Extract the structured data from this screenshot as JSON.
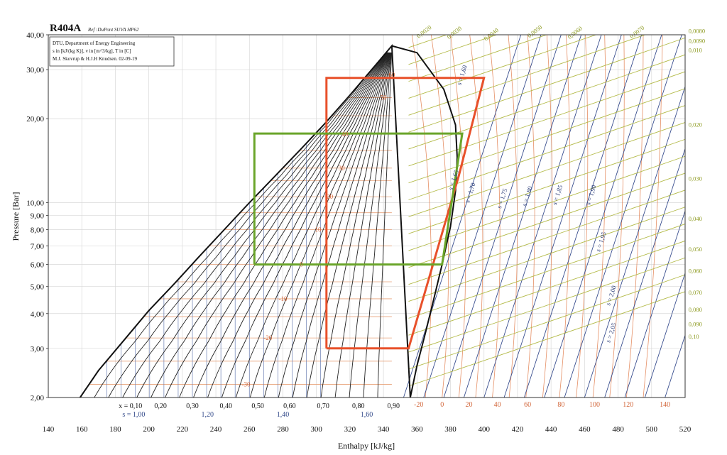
{
  "chart_data": {
    "type": "line",
    "title": "R404A",
    "subtitle": "Ref :DuPont SUVA HP62",
    "info_box": [
      "DTU, Department of Energy Engineering",
      "s in [kJ/(kg K)], v in [m^3/kg], T in [C]",
      "M.J. Skovrup & H.J.H Knudsen. 02-09-19"
    ],
    "xlabel": "Enthalpy [kJ/kg]",
    "ylabel": "Pressure [Bar]",
    "x_scale": "linear",
    "y_scale": "log",
    "xlim": [
      140,
      520
    ],
    "ylim": [
      2,
      40
    ],
    "grid": true,
    "x_ticks": [
      140,
      160,
      180,
      200,
      220,
      240,
      260,
      280,
      300,
      320,
      340,
      360,
      380,
      400,
      420,
      440,
      460,
      480,
      500,
      520
    ],
    "x_tick_labels": [
      "140",
      "160",
      "180",
      "200",
      "220",
      "240",
      "260",
      "280",
      "300",
      "320",
      "340",
      "360",
      "380",
      "400",
      "420",
      "440",
      "460",
      "480",
      "500",
      "520"
    ],
    "y_ticks": [
      2,
      3,
      4,
      5,
      6,
      7,
      8,
      9,
      10,
      20,
      30,
      40
    ],
    "y_tick_labels": [
      "2,00",
      "3,00",
      "4,00",
      "5,00",
      "6,00",
      "7,00",
      "8,00",
      "9,00",
      "10,00",
      "20,00",
      "30,00",
      "40,00"
    ],
    "quality_labels": [
      "x = 0,10",
      "0,20",
      "0,30",
      "0,40",
      "0,50",
      "0,60",
      "0,70",
      "0,80",
      "0,90"
    ],
    "quality_label_h": [
      189,
      207,
      226,
      246,
      265,
      284,
      304,
      325,
      346
    ],
    "entropy_bottom_labels": [
      "s = 1,00",
      "1,20",
      "1,40",
      "1,60"
    ],
    "entropy_bottom_h": [
      191,
      235,
      280,
      330
    ],
    "bottom_temp_labels": [
      "-20",
      "0",
      "20",
      "40",
      "60",
      "80",
      "100",
      "120",
      "140"
    ],
    "bottom_temp_h": [
      361,
      375,
      391,
      408,
      426,
      446,
      466,
      486,
      508
    ],
    "isotherm_labels": [
      "60",
      "50",
      "40",
      "30",
      "20",
      "10",
      "0",
      "-10",
      "-20",
      "-30"
    ],
    "isotherm_points": [
      [
        345,
        28.7
      ],
      [
        340,
        23.8
      ],
      [
        317,
        17.6
      ],
      [
        315,
        13.3
      ],
      [
        308,
        10.5
      ],
      [
        301,
        8.0
      ],
      [
        291,
        6.0
      ],
      [
        280,
        4.52
      ],
      [
        271,
        3.27
      ],
      [
        258,
        2.23
      ]
    ],
    "entropy_labels": [
      "s = 1,60",
      "s = 1,65",
      "s = 1,70",
      "s = 1,75",
      "s = 1,80",
      "s = 1,85",
      "s = 1,90",
      "s = 1,95",
      "s = 2,00",
      "s = 2,05"
    ],
    "entropy_points": [
      [
        388,
        28.5
      ],
      [
        383,
        12.0
      ],
      [
        393,
        10.8
      ],
      [
        412,
        10.3
      ],
      [
        427,
        10.5
      ],
      [
        445,
        10.6
      ],
      [
        465,
        10.6
      ],
      [
        471,
        7.2
      ],
      [
        477,
        4.62
      ],
      [
        477,
        3.4
      ]
    ],
    "volume_labels": [
      "0,0020",
      "0,0030",
      "0,0040",
      "0,0050",
      "0,0060",
      "0,0070",
      "0,0080",
      "0,0090",
      "0,010",
      "0,020",
      "0,030",
      "0,040",
      "0,050",
      "0,060",
      "0,070",
      "0,080",
      "0,090",
      "0,10"
    ],
    "volume_points": [
      [
        365,
        40.5
      ],
      [
        383,
        40.2
      ],
      [
        405,
        39.6
      ],
      [
        431,
        40.6
      ],
      [
        455,
        40.2
      ],
      [
        492,
        40.4
      ],
      [
        522,
        40.6
      ],
      [
        522,
        37.4
      ],
      [
        522,
        34.6
      ],
      [
        522,
        18.7
      ],
      [
        522,
        12.0
      ],
      [
        522,
        8.6
      ],
      [
        522,
        6.7
      ],
      [
        522,
        5.6
      ],
      [
        522,
        4.68
      ],
      [
        522,
        4.07
      ],
      [
        522,
        3.61
      ],
      [
        522,
        3.25
      ]
    ],
    "saturation_dome": {
      "liquid_h": [
        159,
        170,
        185,
        200,
        215,
        230,
        245,
        260,
        275,
        290,
        305,
        320,
        335,
        345
      ],
      "liquid_p": [
        2.0,
        2.5,
        3.2,
        4.1,
        5.1,
        6.4,
        8.0,
        10.0,
        12.4,
        15.4,
        19.2,
        24.3,
        31.0,
        36.5
      ],
      "vapor_h": [
        356,
        360,
        365,
        370,
        375,
        380,
        383,
        384,
        383,
        376,
        360,
        345
      ],
      "vapor_p": [
        2.0,
        2.6,
        3.4,
        4.5,
        6.0,
        8.2,
        11.0,
        14.5,
        19.0,
        25.5,
        34.5,
        36.5
      ]
    },
    "series": [
      {
        "name": "",
        "color": "#e8502a",
        "h": [
          306,
          306,
          355,
          385,
          400,
          306
        ],
        "p": [
          3.0,
          28.0,
          3.0,
          12.5,
          28.0,
          28.0
        ],
        "order": [
          [
            306,
            3.0
          ],
          [
            306,
            28.0
          ],
          [
            400,
            28.0
          ],
          [
            385,
            12.5
          ],
          [
            355,
            3.0
          ],
          [
            306,
            3.0
          ]
        ]
      },
      {
        "name": "",
        "color": "#6aa52a",
        "h": [
          263,
          263,
          375,
          387,
          263
        ],
        "p": [
          6.0,
          17.7,
          6.0,
          17.7,
          6.0
        ],
        "order": [
          [
            263,
            6.0
          ],
          [
            263,
            17.7
          ],
          [
            387,
            17.7
          ],
          [
            375,
            6.0
          ],
          [
            263,
            6.0
          ]
        ]
      }
    ]
  }
}
